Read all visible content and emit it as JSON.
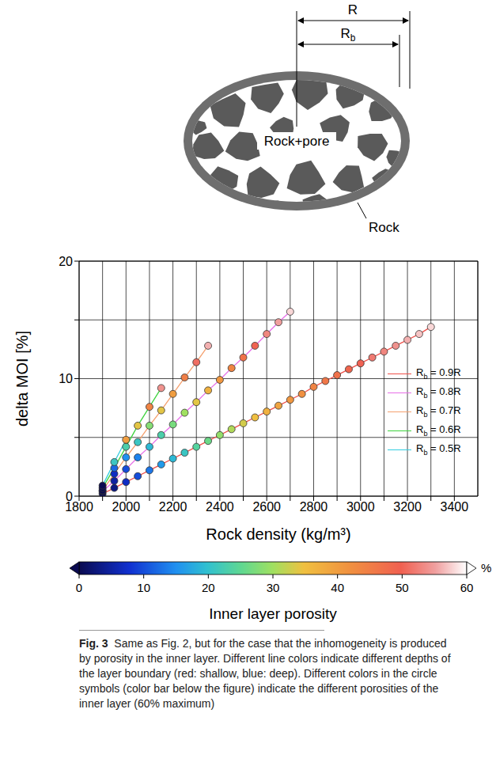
{
  "diagram": {
    "R": "R",
    "Rb": "Rb",
    "inner": "Rock+pore",
    "outer": "Rock"
  },
  "chart_data": {
    "type": "line",
    "xlabel": "Rock density (kg/m³)",
    "ylabel": "delta MOI [%]",
    "xlim": [
      1800,
      3500
    ],
    "xticks": [
      1800,
      2000,
      2200,
      2400,
      2600,
      2800,
      3000,
      3200,
      3400
    ],
    "xticks_minor": [
      1900,
      2100,
      2300,
      2500,
      2700,
      2900,
      3100,
      3300
    ],
    "ylim": [
      0,
      20
    ],
    "yticks": [
      0,
      10,
      20
    ],
    "yticks_minor": [
      5,
      15
    ],
    "grid": true,
    "legend": "right",
    "marker": "circle",
    "series": [
      {
        "name": "Rb = 0.9R",
        "color": "#f0504a",
        "x": [
          1900,
          1950,
          2000,
          2050,
          2100,
          2150,
          2200,
          2250,
          2300,
          2350,
          2400,
          2450,
          2500,
          2550,
          2600,
          2650,
          2700,
          2750,
          2800,
          2850,
          2900,
          2950,
          3000,
          3050,
          3100,
          3150,
          3200,
          3250,
          3300
        ],
        "values": [
          0.2,
          0.7,
          1.2,
          1.7,
          2.2,
          2.7,
          3.2,
          3.7,
          4.2,
          4.7,
          5.2,
          5.7,
          6.2,
          6.7,
          7.2,
          7.7,
          8.2,
          8.7,
          9.3,
          9.8,
          10.3,
          10.8,
          11.3,
          11.8,
          12.3,
          12.8,
          13.3,
          13.8,
          14.4
        ],
        "porosity": [
          0,
          3,
          7,
          10,
          13,
          16,
          19,
          21,
          24,
          26,
          29,
          31,
          33,
          35,
          37,
          39,
          41,
          42,
          44,
          46,
          47,
          49,
          50,
          52,
          53,
          54,
          56,
          57,
          58
        ]
      },
      {
        "name": "Rb = 0.8R",
        "color": "#e76fe8",
        "x": [
          1900,
          1950,
          2000,
          2050,
          2100,
          2150,
          2200,
          2250,
          2300,
          2350,
          2400,
          2450,
          2500,
          2550,
          2600,
          2650,
          2700
        ],
        "values": [
          0.4,
          1.3,
          2.3,
          3.3,
          4.2,
          5.2,
          6.1,
          7.1,
          8.0,
          9.0,
          9.9,
          10.9,
          11.8,
          12.8,
          13.8,
          14.8,
          15.7
        ],
        "porosity": [
          0,
          5,
          10,
          14,
          19,
          23,
          27,
          30,
          34,
          37,
          41,
          44,
          47,
          50,
          53,
          55,
          58
        ]
      },
      {
        "name": "Rb = 0.7R",
        "color": "#f5a06e",
        "x": [
          1900,
          1950,
          2000,
          2050,
          2100,
          2150,
          2200,
          2250,
          2300,
          2350
        ],
        "values": [
          0.5,
          1.9,
          3.3,
          4.6,
          6.0,
          7.3,
          8.7,
          10.1,
          11.4,
          12.8
        ],
        "porosity": [
          0,
          7,
          15,
          21,
          28,
          34,
          40,
          45,
          51,
          56
        ]
      },
      {
        "name": "Rb = 0.6R",
        "color": "#3ed33e",
        "x": [
          1900,
          1950,
          2000,
          2050,
          2100,
          2150
        ],
        "values": [
          0.7,
          2.4,
          4.2,
          6.0,
          7.6,
          9.2
        ],
        "porosity": [
          0,
          12,
          23,
          34,
          44,
          54
        ]
      },
      {
        "name": "Rb = 0.5R",
        "color": "#33cde0",
        "x": [
          1900,
          1950,
          2000
        ],
        "values": [
          0.9,
          2.9,
          4.8
        ],
        "porosity": [
          0,
          21,
          40
        ]
      }
    ]
  },
  "colorbar": {
    "label": "Inner layer porosity",
    "unit": "%",
    "range": [
      0,
      60
    ],
    "ticks": [
      0,
      10,
      20,
      30,
      40,
      50,
      60
    ]
  },
  "caption": {
    "label": "Fig. 3",
    "text": "Same as Fig. 2, but for the case that the inhomogeneity is produced by porosity in the inner layer. Different line colors indicate different depths of the layer boundary (red: shallow, blue: deep). Different colors in the circle symbols (color bar below the figure) indicate the different porosities of the inner layer (60% maximum)"
  }
}
